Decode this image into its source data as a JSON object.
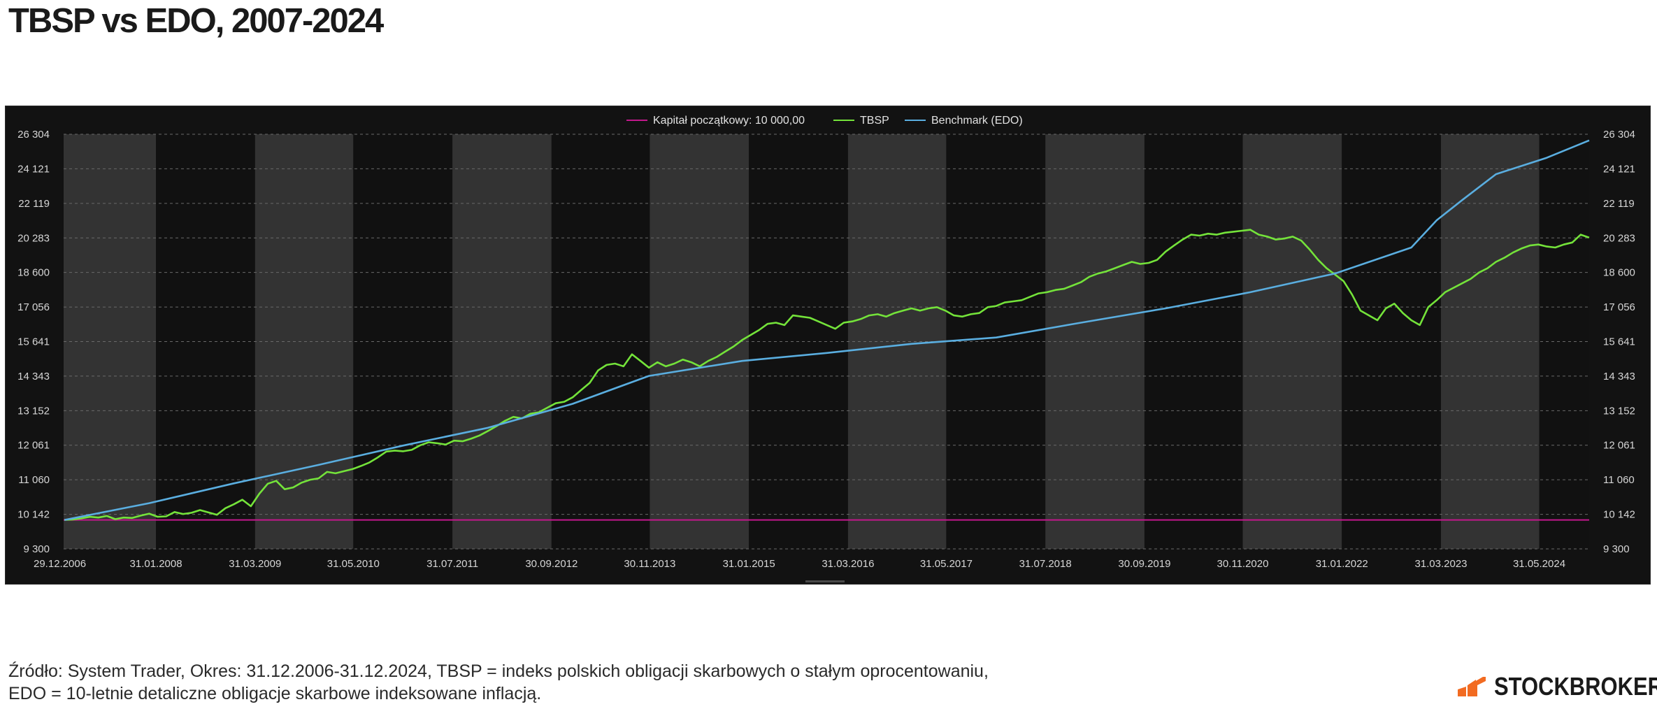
{
  "page": {
    "title": "TBSP vs EDO, 2007-2024",
    "source_line1": "Źródło: System Trader, Okres: 31.12.2006-31.12.2024, TBSP = indeks polskich obligacji skarbowych o stałym oprocentowaniu,",
    "source_line2": "EDO = 10-letnie detaliczne obligacje skarbowe indeksowane inflacją.",
    "brand": "STOCKBROKER",
    "brand_icon": "stockbroker-logo-icon"
  },
  "chart_data": {
    "type": "line",
    "title": "",
    "xlabel": "",
    "ylabel": "",
    "x_range": [
      2006.99,
      2025.0
    ],
    "ylim": [
      9300,
      26304
    ],
    "y_scale": "log",
    "grid": "horizontal dashed",
    "alternating_year_bands": true,
    "legend_position": "top-center",
    "y_ticks": [
      "9 300",
      "10 142",
      "11 060",
      "12 061",
      "13 152",
      "14 343",
      "15 641",
      "17 056",
      "18 600",
      "20 283",
      "22 119",
      "24 121",
      "26 304"
    ],
    "y_tick_values": [
      9300,
      10142,
      11060,
      12061,
      13152,
      14343,
      15641,
      17056,
      18600,
      20283,
      22119,
      24121,
      26304
    ],
    "x_ticks": [
      "29.12.2006",
      "31.01.2008",
      "31.03.2009",
      "31.05.2010",
      "31.07.2011",
      "30.09.2012",
      "30.11.2013",
      "31.01.2015",
      "31.03.2016",
      "31.05.2017",
      "31.07.2018",
      "30.09.2019",
      "30.11.2020",
      "31.01.2022",
      "31.03.2023",
      "31.05.2024"
    ],
    "x_tick_values": [
      2006.99,
      2008.08,
      2009.25,
      2010.41,
      2011.58,
      2012.75,
      2013.91,
      2015.08,
      2016.25,
      2017.41,
      2018.58,
      2019.75,
      2020.91,
      2022.08,
      2023.25,
      2024.41
    ],
    "series": [
      {
        "name": "Kapitał początkowy: 10 000,00",
        "color": "#c2188c",
        "points": [
          [
            2006.99,
            10000
          ],
          [
            2025.0,
            10000
          ]
        ]
      },
      {
        "name": "TBSP",
        "color": "#74e33a",
        "points": [
          [
            2007.0,
            10000
          ],
          [
            2007.1,
            10010
          ],
          [
            2007.2,
            10040
          ],
          [
            2007.3,
            10080
          ],
          [
            2007.4,
            10060
          ],
          [
            2007.5,
            10100
          ],
          [
            2007.6,
            10020
          ],
          [
            2007.7,
            10060
          ],
          [
            2007.8,
            10050
          ],
          [
            2007.9,
            10110
          ],
          [
            2008.0,
            10160
          ],
          [
            2008.1,
            10080
          ],
          [
            2008.2,
            10090
          ],
          [
            2008.3,
            10200
          ],
          [
            2008.4,
            10150
          ],
          [
            2008.5,
            10180
          ],
          [
            2008.6,
            10250
          ],
          [
            2008.7,
            10190
          ],
          [
            2008.8,
            10130
          ],
          [
            2008.9,
            10300
          ],
          [
            2009.0,
            10400
          ],
          [
            2009.1,
            10520
          ],
          [
            2009.2,
            10350
          ],
          [
            2009.3,
            10680
          ],
          [
            2009.4,
            10950
          ],
          [
            2009.5,
            11030
          ],
          [
            2009.6,
            10800
          ],
          [
            2009.7,
            10850
          ],
          [
            2009.8,
            10980
          ],
          [
            2009.9,
            11060
          ],
          [
            2010.0,
            11100
          ],
          [
            2010.1,
            11280
          ],
          [
            2010.2,
            11240
          ],
          [
            2010.3,
            11300
          ],
          [
            2010.4,
            11360
          ],
          [
            2010.5,
            11450
          ],
          [
            2010.6,
            11550
          ],
          [
            2010.7,
            11700
          ],
          [
            2010.8,
            11870
          ],
          [
            2010.9,
            11900
          ],
          [
            2011.0,
            11880
          ],
          [
            2011.1,
            11920
          ],
          [
            2011.2,
            12060
          ],
          [
            2011.3,
            12150
          ],
          [
            2011.4,
            12120
          ],
          [
            2011.5,
            12080
          ],
          [
            2011.6,
            12200
          ],
          [
            2011.7,
            12180
          ],
          [
            2011.8,
            12260
          ],
          [
            2011.9,
            12360
          ],
          [
            2012.0,
            12500
          ],
          [
            2012.1,
            12650
          ],
          [
            2012.2,
            12820
          ],
          [
            2012.3,
            12950
          ],
          [
            2012.4,
            12900
          ],
          [
            2012.5,
            13050
          ],
          [
            2012.6,
            13100
          ],
          [
            2012.7,
            13250
          ],
          [
            2012.8,
            13400
          ],
          [
            2012.9,
            13450
          ],
          [
            2013.0,
            13600
          ],
          [
            2013.1,
            13850
          ],
          [
            2013.2,
            14100
          ],
          [
            2013.3,
            14550
          ],
          [
            2013.4,
            14750
          ],
          [
            2013.5,
            14800
          ],
          [
            2013.6,
            14700
          ],
          [
            2013.7,
            15150
          ],
          [
            2013.8,
            14900
          ],
          [
            2013.9,
            14650
          ],
          [
            2014.0,
            14850
          ],
          [
            2014.1,
            14700
          ],
          [
            2014.2,
            14800
          ],
          [
            2014.3,
            14950
          ],
          [
            2014.4,
            14850
          ],
          [
            2014.5,
            14700
          ],
          [
            2014.6,
            14900
          ],
          [
            2014.7,
            15050
          ],
          [
            2014.8,
            15250
          ],
          [
            2014.9,
            15450
          ],
          [
            2015.0,
            15700
          ],
          [
            2015.1,
            15900
          ],
          [
            2015.2,
            16100
          ],
          [
            2015.3,
            16350
          ],
          [
            2015.4,
            16400
          ],
          [
            2015.5,
            16300
          ],
          [
            2015.6,
            16700
          ],
          [
            2015.7,
            16650
          ],
          [
            2015.8,
            16600
          ],
          [
            2015.9,
            16450
          ],
          [
            2016.0,
            16300
          ],
          [
            2016.1,
            16150
          ],
          [
            2016.2,
            16400
          ],
          [
            2016.3,
            16450
          ],
          [
            2016.4,
            16550
          ],
          [
            2016.5,
            16700
          ],
          [
            2016.6,
            16750
          ],
          [
            2016.7,
            16650
          ],
          [
            2016.8,
            16800
          ],
          [
            2016.9,
            16900
          ],
          [
            2017.0,
            17000
          ],
          [
            2017.1,
            16900
          ],
          [
            2017.2,
            17000
          ],
          [
            2017.3,
            17050
          ],
          [
            2017.4,
            16900
          ],
          [
            2017.5,
            16700
          ],
          [
            2017.6,
            16650
          ],
          [
            2017.7,
            16750
          ],
          [
            2017.8,
            16800
          ],
          [
            2017.9,
            17050
          ],
          [
            2018.0,
            17100
          ],
          [
            2018.1,
            17250
          ],
          [
            2018.2,
            17300
          ],
          [
            2018.3,
            17350
          ],
          [
            2018.4,
            17500
          ],
          [
            2018.5,
            17650
          ],
          [
            2018.6,
            17700
          ],
          [
            2018.7,
            17800
          ],
          [
            2018.8,
            17850
          ],
          [
            2018.9,
            18000
          ],
          [
            2019.0,
            18150
          ],
          [
            2019.1,
            18400
          ],
          [
            2019.2,
            18550
          ],
          [
            2019.3,
            18650
          ],
          [
            2019.4,
            18800
          ],
          [
            2019.5,
            18950
          ],
          [
            2019.6,
            19100
          ],
          [
            2019.7,
            19000
          ],
          [
            2019.8,
            19050
          ],
          [
            2019.9,
            19200
          ],
          [
            2020.0,
            19600
          ],
          [
            2020.1,
            19900
          ],
          [
            2020.2,
            20200
          ],
          [
            2020.3,
            20450
          ],
          [
            2020.4,
            20400
          ],
          [
            2020.5,
            20500
          ],
          [
            2020.6,
            20450
          ],
          [
            2020.7,
            20550
          ],
          [
            2020.8,
            20600
          ],
          [
            2020.9,
            20650
          ],
          [
            2021.0,
            20700
          ],
          [
            2021.1,
            20450
          ],
          [
            2021.2,
            20350
          ],
          [
            2021.3,
            20200
          ],
          [
            2021.4,
            20250
          ],
          [
            2021.5,
            20350
          ],
          [
            2021.6,
            20150
          ],
          [
            2021.7,
            19700
          ],
          [
            2021.8,
            19200
          ],
          [
            2021.9,
            18800
          ],
          [
            2022.0,
            18500
          ],
          [
            2022.1,
            18200
          ],
          [
            2022.2,
            17600
          ],
          [
            2022.3,
            16900
          ],
          [
            2022.4,
            16700
          ],
          [
            2022.5,
            16500
          ],
          [
            2022.6,
            17000
          ],
          [
            2022.7,
            17200
          ],
          [
            2022.8,
            16800
          ],
          [
            2022.9,
            16500
          ],
          [
            2023.0,
            16300
          ],
          [
            2023.1,
            17050
          ],
          [
            2023.2,
            17350
          ],
          [
            2023.3,
            17700
          ],
          [
            2023.4,
            17900
          ],
          [
            2023.5,
            18100
          ],
          [
            2023.6,
            18300
          ],
          [
            2023.7,
            18600
          ],
          [
            2023.8,
            18800
          ],
          [
            2023.9,
            19100
          ],
          [
            2024.0,
            19300
          ],
          [
            2024.1,
            19550
          ],
          [
            2024.2,
            19750
          ],
          [
            2024.3,
            19900
          ],
          [
            2024.4,
            19950
          ],
          [
            2024.5,
            19850
          ],
          [
            2024.6,
            19800
          ],
          [
            2024.7,
            19950
          ],
          [
            2024.8,
            20050
          ],
          [
            2024.9,
            20450
          ],
          [
            2025.0,
            20300
          ]
        ]
      },
      {
        "name": "Benchmark (EDO)",
        "color": "#5aaee0",
        "points": [
          [
            2007.0,
            10000
          ],
          [
            2008.0,
            10430
          ],
          [
            2009.0,
            10960
          ],
          [
            2010.0,
            11480
          ],
          [
            2011.0,
            12050
          ],
          [
            2012.0,
            12600
          ],
          [
            2013.0,
            13380
          ],
          [
            2013.9,
            14350
          ],
          [
            2015.0,
            14900
          ],
          [
            2016.0,
            15200
          ],
          [
            2017.0,
            15550
          ],
          [
            2018.0,
            15800
          ],
          [
            2019.0,
            16400
          ],
          [
            2020.0,
            17000
          ],
          [
            2021.0,
            17700
          ],
          [
            2022.0,
            18550
          ],
          [
            2022.9,
            19800
          ],
          [
            2023.2,
            21200
          ],
          [
            2023.5,
            22300
          ],
          [
            2023.9,
            23800
          ],
          [
            2024.5,
            24800
          ],
          [
            2025.0,
            25900
          ]
        ]
      }
    ]
  }
}
